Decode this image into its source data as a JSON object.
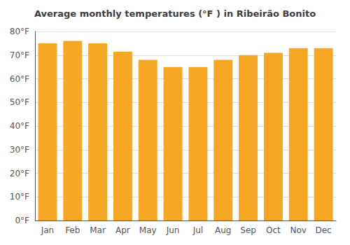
{
  "chart_data": {
    "type": "bar",
    "title": "Average monthly temperatures (°F ) in Ribeirão Bonito",
    "categories": [
      "Jan",
      "Feb",
      "Mar",
      "Apr",
      "May",
      "Jun",
      "Jul",
      "Aug",
      "Sep",
      "Oct",
      "Nov",
      "Dec"
    ],
    "values": [
      75,
      76,
      75,
      71.5,
      68,
      65,
      65,
      68,
      70,
      71,
      73,
      73
    ],
    "color": "#F5A623",
    "ylim": [
      0,
      80
    ],
    "yticks": [
      {
        "value": 0,
        "label": "0°F"
      },
      {
        "value": 10,
        "label": "10°F"
      },
      {
        "value": 20,
        "label": "20°F"
      },
      {
        "value": 30,
        "label": "30°F"
      },
      {
        "value": 40,
        "label": "40°F"
      },
      {
        "value": 50,
        "label": "50°F"
      },
      {
        "value": 60,
        "label": "60°F"
      },
      {
        "value": 70,
        "label": "70°F"
      },
      {
        "value": 80,
        "label": "80°F"
      }
    ],
    "grid": true
  }
}
